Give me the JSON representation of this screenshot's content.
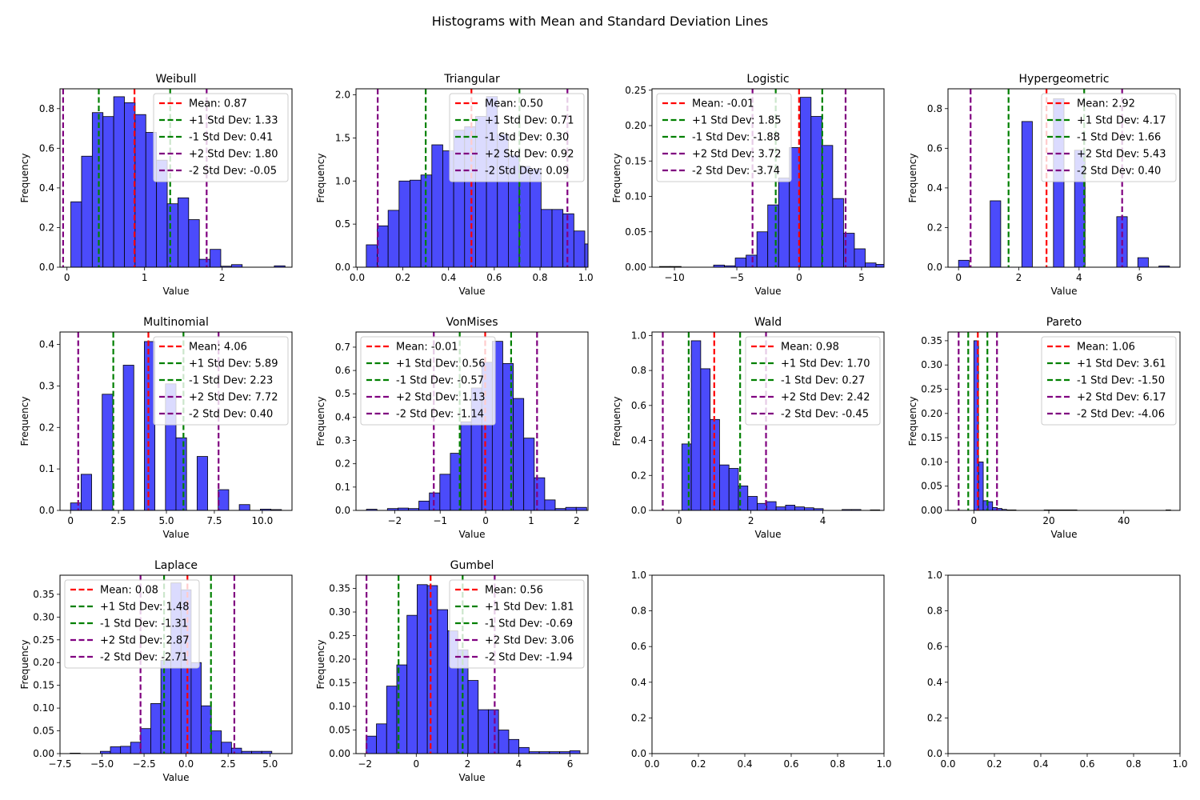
{
  "figure": {
    "title": "Histograms with Mean and Standard Deviation Lines"
  },
  "colors": {
    "bar": "#4b4bfb",
    "bar_edge": "#000000",
    "mean": "#ff0000",
    "std1": "#008000",
    "std2": "#800080"
  },
  "chart_data": [
    {
      "type": "bar",
      "title": "Weibull",
      "xlabel": "Value",
      "ylabel": "Frequency",
      "xlim": [
        -0.09,
        2.9
      ],
      "ylim": [
        0,
        0.9
      ],
      "xticks": [
        0,
        1,
        2
      ],
      "xtick_labels": [
        "0",
        "1",
        "2"
      ],
      "yticks": [
        0,
        0.2,
        0.4,
        0.6,
        0.8
      ],
      "ytick_labels": [
        "0.0",
        "0.2",
        "0.4",
        "0.6",
        "0.8"
      ],
      "bin_start": 0.05,
      "bin_width": 0.138,
      "values": [
        0.33,
        0.56,
        0.78,
        0.76,
        0.86,
        0.83,
        0.77,
        0.68,
        0.54,
        0.32,
        0.35,
        0.24,
        0.04,
        0.09,
        0.005,
        0.013,
        0,
        0,
        0,
        0.007
      ],
      "legend_loc": "upper right",
      "lines": [
        {
          "kind": "mean",
          "x": 0.87,
          "label": "Mean: 0.87"
        },
        {
          "kind": "std1",
          "x": 1.33,
          "label": "+1 Std Dev: 1.33"
        },
        {
          "kind": "std1",
          "x": 0.41,
          "label": "-1 Std Dev: 0.41"
        },
        {
          "kind": "std2",
          "x": 1.8,
          "label": "+2 Std Dev: 1.80"
        },
        {
          "kind": "std2",
          "x": -0.05,
          "label": "-2 Std Dev: -0.05"
        }
      ]
    },
    {
      "type": "bar",
      "title": "Triangular",
      "xlabel": "Value",
      "ylabel": "Frequency",
      "xlim": [
        -0.005,
        1.01
      ],
      "ylim": [
        0,
        2.07
      ],
      "xticks": [
        0,
        0.2,
        0.4,
        0.6,
        0.8,
        1.0
      ],
      "xtick_labels": [
        "0.0",
        "0.2",
        "0.4",
        "0.6",
        "0.8",
        "1.0"
      ],
      "yticks": [
        0,
        0.5,
        1.0,
        1.5,
        2.0
      ],
      "ytick_labels": [
        "0.0",
        "0.5",
        "1.0",
        "1.5",
        "2.0"
      ],
      "bin_start": 0.04,
      "bin_width": 0.0478,
      "values": [
        0.26,
        0.48,
        0.66,
        1.0,
        1.01,
        1.07,
        1.42,
        1.35,
        1.59,
        1.63,
        1.75,
        1.98,
        1.54,
        1.3,
        1.17,
        1.14,
        0.67,
        0.67,
        0.62,
        0.42,
        0.27
      ],
      "legend_loc": "upper right",
      "lines": [
        {
          "kind": "mean",
          "x": 0.5,
          "label": "Mean: 0.50"
        },
        {
          "kind": "std1",
          "x": 0.71,
          "label": "+1 Std Dev: 0.71"
        },
        {
          "kind": "std1",
          "x": 0.3,
          "label": "-1 Std Dev: 0.30"
        },
        {
          "kind": "std2",
          "x": 0.92,
          "label": "+2 Std Dev: 0.92"
        },
        {
          "kind": "std2",
          "x": 0.09,
          "label": "-2 Std Dev: 0.09"
        }
      ]
    },
    {
      "type": "bar",
      "title": "Logistic",
      "xlabel": "Value",
      "ylabel": "Frequency",
      "xlim": [
        -11.8,
        6.8
      ],
      "ylim": [
        0,
        0.252
      ],
      "xticks": [
        -10,
        -5,
        0,
        5
      ],
      "xtick_labels": [
        "−10",
        "−5",
        "0",
        "5"
      ],
      "yticks": [
        0,
        0.05,
        0.1,
        0.15,
        0.2,
        0.25
      ],
      "ytick_labels": [
        "0.00",
        "0.05",
        "0.10",
        "0.15",
        "0.20",
        "0.25"
      ],
      "bin_start": -11.2,
      "bin_width": 0.868,
      "values": [
        0.001,
        0.001,
        0,
        0,
        0,
        0.003,
        0.002,
        0.013,
        0.017,
        0.05,
        0.088,
        0.126,
        0.169,
        0.24,
        0.213,
        0.172,
        0.097,
        0.048,
        0.026,
        0.006,
        0.004
      ],
      "legend_loc": "upper left",
      "lines": [
        {
          "kind": "mean",
          "x": -0.01,
          "label": "Mean: -0.01"
        },
        {
          "kind": "std1",
          "x": 1.85,
          "label": "+1 Std Dev: 1.85"
        },
        {
          "kind": "std1",
          "x": -1.88,
          "label": "-1 Std Dev: -1.88"
        },
        {
          "kind": "std2",
          "x": 3.72,
          "label": "+2 Std Dev: 3.72"
        },
        {
          "kind": "std2",
          "x": -3.74,
          "label": "-2 Std Dev: -3.74"
        }
      ]
    },
    {
      "type": "bar",
      "title": "Hypergeometric",
      "xlabel": "Value",
      "ylabel": "Frequency",
      "xlim": [
        -0.35,
        7.35
      ],
      "ylim": [
        0,
        0.9
      ],
      "xticks": [
        0,
        2,
        4,
        6
      ],
      "xtick_labels": [
        "0",
        "2",
        "4",
        "6"
      ],
      "yticks": [
        0,
        0.2,
        0.4,
        0.6,
        0.8
      ],
      "ytick_labels": [
        "0.0",
        "0.2",
        "0.4",
        "0.6",
        "0.8"
      ],
      "bin_start": 0,
      "bin_width": 0.35,
      "values": [
        0.035,
        0,
        0,
        0.335,
        0,
        0,
        0.735,
        0,
        0,
        0.85,
        0,
        0.59,
        0,
        0,
        0,
        0.255,
        0,
        0.048,
        0,
        0.006
      ],
      "legend_loc": "upper right",
      "lines": [
        {
          "kind": "mean",
          "x": 2.92,
          "label": "Mean: 2.92"
        },
        {
          "kind": "std1",
          "x": 4.17,
          "label": "+1 Std Dev: 4.17"
        },
        {
          "kind": "std1",
          "x": 1.66,
          "label": "-1 Std Dev: 1.66"
        },
        {
          "kind": "std2",
          "x": 5.43,
          "label": "+2 Std Dev: 5.43"
        },
        {
          "kind": "std2",
          "x": 0.4,
          "label": "-2 Std Dev: 0.40"
        }
      ]
    },
    {
      "type": "bar",
      "title": "Multinomial",
      "xlabel": "Value",
      "ylabel": "Frequency",
      "xlim": [
        -0.55,
        11.55
      ],
      "ylim": [
        0,
        0.43
      ],
      "xticks": [
        0,
        2.5,
        5.0,
        7.5,
        10.0
      ],
      "xtick_labels": [
        "0",
        "2.5",
        "5.0",
        "7.5",
        "10.0"
      ],
      "yticks": [
        0,
        0.1,
        0.2,
        0.3,
        0.4
      ],
      "ytick_labels": [
        "0.0",
        "0.1",
        "0.2",
        "0.3",
        "0.4"
      ],
      "bin_start": 0,
      "bin_width": 0.55,
      "values": [
        0.018,
        0.087,
        0,
        0.28,
        0,
        0.35,
        0,
        0.407,
        0,
        0.305,
        0.175,
        0,
        0.13,
        0,
        0.05,
        0,
        0.014,
        0,
        0.003,
        0.002
      ],
      "legend_loc": "upper right",
      "lines": [
        {
          "kind": "mean",
          "x": 4.06,
          "label": "Mean: 4.06"
        },
        {
          "kind": "std1",
          "x": 5.89,
          "label": "+1 Std Dev: 5.89"
        },
        {
          "kind": "std1",
          "x": 2.23,
          "label": "-1 Std Dev: 2.23"
        },
        {
          "kind": "std2",
          "x": 7.72,
          "label": "+2 Std Dev: 7.72"
        },
        {
          "kind": "std2",
          "x": 0.4,
          "label": "-2 Std Dev: 0.40"
        }
      ]
    },
    {
      "type": "bar",
      "title": "VonMises",
      "xlabel": "Value",
      "ylabel": "Frequency",
      "xlim": [
        -2.85,
        2.25
      ],
      "ylim": [
        0,
        0.765
      ],
      "xticks": [
        -2,
        -1,
        0,
        1,
        2
      ],
      "xtick_labels": [
        "−2",
        "−1",
        "0",
        "1",
        "2"
      ],
      "yticks": [
        0,
        0.1,
        0.2,
        0.3,
        0.4,
        0.5,
        0.6,
        0.7
      ],
      "ytick_labels": [
        "0.0",
        "0.1",
        "0.2",
        "0.3",
        "0.4",
        "0.5",
        "0.6",
        "0.7"
      ],
      "bin_start": -2.62,
      "bin_width": 0.2305,
      "values": [
        0.005,
        0,
        0.008,
        0.01,
        0.008,
        0.04,
        0.075,
        0.155,
        0.245,
        0.38,
        0.525,
        0.635,
        0.725,
        0.63,
        0.48,
        0.31,
        0.14,
        0.045,
        0.008,
        0.013,
        0.013
      ],
      "legend_loc": "upper left",
      "lines": [
        {
          "kind": "mean",
          "x": -0.01,
          "label": "Mean: -0.01"
        },
        {
          "kind": "std1",
          "x": 0.56,
          "label": "+1 Std Dev: 0.56"
        },
        {
          "kind": "std1",
          "x": -0.57,
          "label": "-1 Std Dev: -0.57"
        },
        {
          "kind": "std2",
          "x": 1.13,
          "label": "+2 Std Dev: 1.13"
        },
        {
          "kind": "std2",
          "x": -1.14,
          "label": "-2 Std Dev: -1.14"
        }
      ]
    },
    {
      "type": "bar",
      "title": "Wald",
      "xlabel": "Value",
      "ylabel": "Frequency",
      "xlim": [
        -0.75,
        5.7
      ],
      "ylim": [
        0,
        1.02
      ],
      "xticks": [
        0,
        2,
        4
      ],
      "xtick_labels": [
        "0",
        "2",
        "4"
      ],
      "yticks": [
        0,
        0.2,
        0.4,
        0.6,
        0.8,
        1.0
      ],
      "ytick_labels": [
        "0.0",
        "0.2",
        "0.4",
        "0.6",
        "0.8",
        "1.0"
      ],
      "bin_start": 0.08,
      "bin_width": 0.262,
      "values": [
        0.38,
        0.97,
        0.81,
        0.52,
        0.26,
        0.24,
        0.14,
        0.08,
        0.04,
        0.05,
        0.02,
        0.03,
        0.02,
        0.015,
        0.01,
        0,
        0,
        0.005,
        0.005,
        0,
        0.003
      ],
      "legend_loc": "upper right",
      "lines": [
        {
          "kind": "mean",
          "x": 0.98,
          "label": "Mean: 0.98"
        },
        {
          "kind": "std1",
          "x": 1.7,
          "label": "+1 Std Dev: 1.70"
        },
        {
          "kind": "std1",
          "x": 0.27,
          "label": "-1 Std Dev: 0.27"
        },
        {
          "kind": "std2",
          "x": 2.42,
          "label": "+2 Std Dev: 2.42"
        },
        {
          "kind": "std2",
          "x": -0.45,
          "label": "-2 Std Dev: -0.45"
        }
      ]
    },
    {
      "type": "bar",
      "title": "Pareto",
      "xlabel": "Value",
      "ylabel": "Frequency",
      "xlim": [
        -6.9,
        55.0
      ],
      "ylim": [
        0,
        0.368
      ],
      "xticks": [
        0,
        20,
        40
      ],
      "xtick_labels": [
        "0",
        "20",
        "40"
      ],
      "yticks": [
        0,
        0.05,
        0.1,
        0.15,
        0.2,
        0.25,
        0.3,
        0.35
      ],
      "ytick_labels": [
        "0.00",
        "0.05",
        "0.10",
        "0.15",
        "0.20",
        "0.25",
        "0.30",
        "0.35"
      ],
      "bin_start": 0.0,
      "bin_width": 1.25,
      "values": [
        0.35,
        0.1,
        0.02,
        0.018,
        0.006,
        0.004,
        0.002,
        0.001,
        0.001,
        0,
        0,
        0,
        0,
        0,
        0,
        0.001,
        0.001,
        0.001,
        0.001,
        0.001,
        0.001,
        0.001,
        0,
        0,
        0,
        0,
        0,
        0,
        0,
        0,
        0,
        0,
        0,
        0,
        0,
        0,
        0,
        0,
        0,
        0,
        0,
        0.001
      ],
      "legend_loc": "upper right",
      "lines": [
        {
          "kind": "mean",
          "x": 1.06,
          "label": "Mean: 1.06"
        },
        {
          "kind": "std1",
          "x": 3.61,
          "label": "+1 Std Dev: 3.61"
        },
        {
          "kind": "std1",
          "x": -1.5,
          "label": "-1 Std Dev: -1.50"
        },
        {
          "kind": "std2",
          "x": 6.17,
          "label": "+2 Std Dev: 6.17"
        },
        {
          "kind": "std2",
          "x": -4.06,
          "label": "-2 Std Dev: -4.06"
        }
      ]
    },
    {
      "type": "bar",
      "title": "Laplace",
      "xlabel": "Value",
      "ylabel": "Frequency",
      "xlim": [
        -7.5,
        6.3
      ],
      "ylim": [
        0,
        0.392
      ],
      "xticks": [
        -7.5,
        -5.0,
        -2.5,
        0,
        2.5,
        5.0
      ],
      "xtick_labels": [
        "−7.5",
        "−5.0",
        "−2.5",
        "0.0",
        "2.5",
        "5.0"
      ],
      "yticks": [
        0,
        0.05,
        0.1,
        0.15,
        0.2,
        0.25,
        0.3,
        0.35
      ],
      "ytick_labels": [
        "0.00",
        "0.05",
        "0.10",
        "0.15",
        "0.20",
        "0.25",
        "0.30",
        "0.35"
      ],
      "bin_start": -6.9,
      "bin_width": 0.6,
      "values": [
        0.001,
        0,
        0,
        0.005,
        0.015,
        0.016,
        0.025,
        0.055,
        0.11,
        0.205,
        0.375,
        0.36,
        0.2,
        0.105,
        0.05,
        0.025,
        0.012,
        0.005,
        0.005,
        0.005
      ],
      "legend_loc": "upper left",
      "lines": [
        {
          "kind": "mean",
          "x": 0.08,
          "label": "Mean: 0.08"
        },
        {
          "kind": "std1",
          "x": 1.48,
          "label": "+1 Std Dev: 1.48"
        },
        {
          "kind": "std1",
          "x": -1.31,
          "label": "-1 Std Dev: -1.31"
        },
        {
          "kind": "std2",
          "x": 2.87,
          "label": "+2 Std Dev: 2.87"
        },
        {
          "kind": "std2",
          "x": -2.71,
          "label": "-2 Std Dev: -2.71"
        }
      ]
    },
    {
      "type": "bar",
      "title": "Gumbel",
      "xlabel": "Value",
      "ylabel": "Frequency",
      "xlim": [
        -2.35,
        6.7
      ],
      "ylim": [
        0,
        0.378
      ],
      "xticks": [
        -2,
        0,
        2,
        4,
        6
      ],
      "xtick_labels": [
        "−2",
        "0",
        "2",
        "4",
        "6"
      ],
      "yticks": [
        0,
        0.05,
        0.1,
        0.15,
        0.2,
        0.25,
        0.3,
        0.35
      ],
      "ytick_labels": [
        "0.00",
        "0.05",
        "0.10",
        "0.15",
        "0.20",
        "0.25",
        "0.30",
        "0.35"
      ],
      "bin_start": -1.95,
      "bin_width": 0.397,
      "values": [
        0.037,
        0.063,
        0.143,
        0.188,
        0.293,
        0.358,
        0.356,
        0.305,
        0.26,
        0.22,
        0.155,
        0.093,
        0.093,
        0.05,
        0.03,
        0.013,
        0.004,
        0.004,
        0.004,
        0.004,
        0.006
      ],
      "legend_loc": "upper right",
      "lines": [
        {
          "kind": "mean",
          "x": 0.56,
          "label": "Mean: 0.56"
        },
        {
          "kind": "std1",
          "x": 1.81,
          "label": "+1 Std Dev: 1.81"
        },
        {
          "kind": "std1",
          "x": -0.69,
          "label": "-1 Std Dev: -0.69"
        },
        {
          "kind": "std2",
          "x": 3.06,
          "label": "+2 Std Dev: 3.06"
        },
        {
          "kind": "std2",
          "x": -1.94,
          "label": "-2 Std Dev: -1.94"
        }
      ]
    },
    {
      "type": "bar",
      "title": "",
      "xlabel": "",
      "ylabel": "",
      "xlim": [
        0,
        1
      ],
      "ylim": [
        0,
        1
      ],
      "xticks": [
        0,
        0.2,
        0.4,
        0.6,
        0.8,
        1.0
      ],
      "xtick_labels": [
        "0.0",
        "0.2",
        "0.4",
        "0.6",
        "0.8",
        "1.0"
      ],
      "yticks": [
        0,
        0.2,
        0.4,
        0.6,
        0.8,
        1.0
      ],
      "ytick_labels": [
        "0.0",
        "0.2",
        "0.4",
        "0.6",
        "0.8",
        "1.0"
      ],
      "values": [],
      "lines": []
    },
    {
      "type": "bar",
      "title": "",
      "xlabel": "",
      "ylabel": "",
      "xlim": [
        0,
        1
      ],
      "ylim": [
        0,
        1
      ],
      "xticks": [
        0,
        0.2,
        0.4,
        0.6,
        0.8,
        1.0
      ],
      "xtick_labels": [
        "0.0",
        "0.2",
        "0.4",
        "0.6",
        "0.8",
        "1.0"
      ],
      "yticks": [
        0,
        0.2,
        0.4,
        0.6,
        0.8,
        1.0
      ],
      "ytick_labels": [
        "0.0",
        "0.2",
        "0.4",
        "0.6",
        "0.8",
        "1.0"
      ],
      "values": [],
      "lines": []
    }
  ]
}
